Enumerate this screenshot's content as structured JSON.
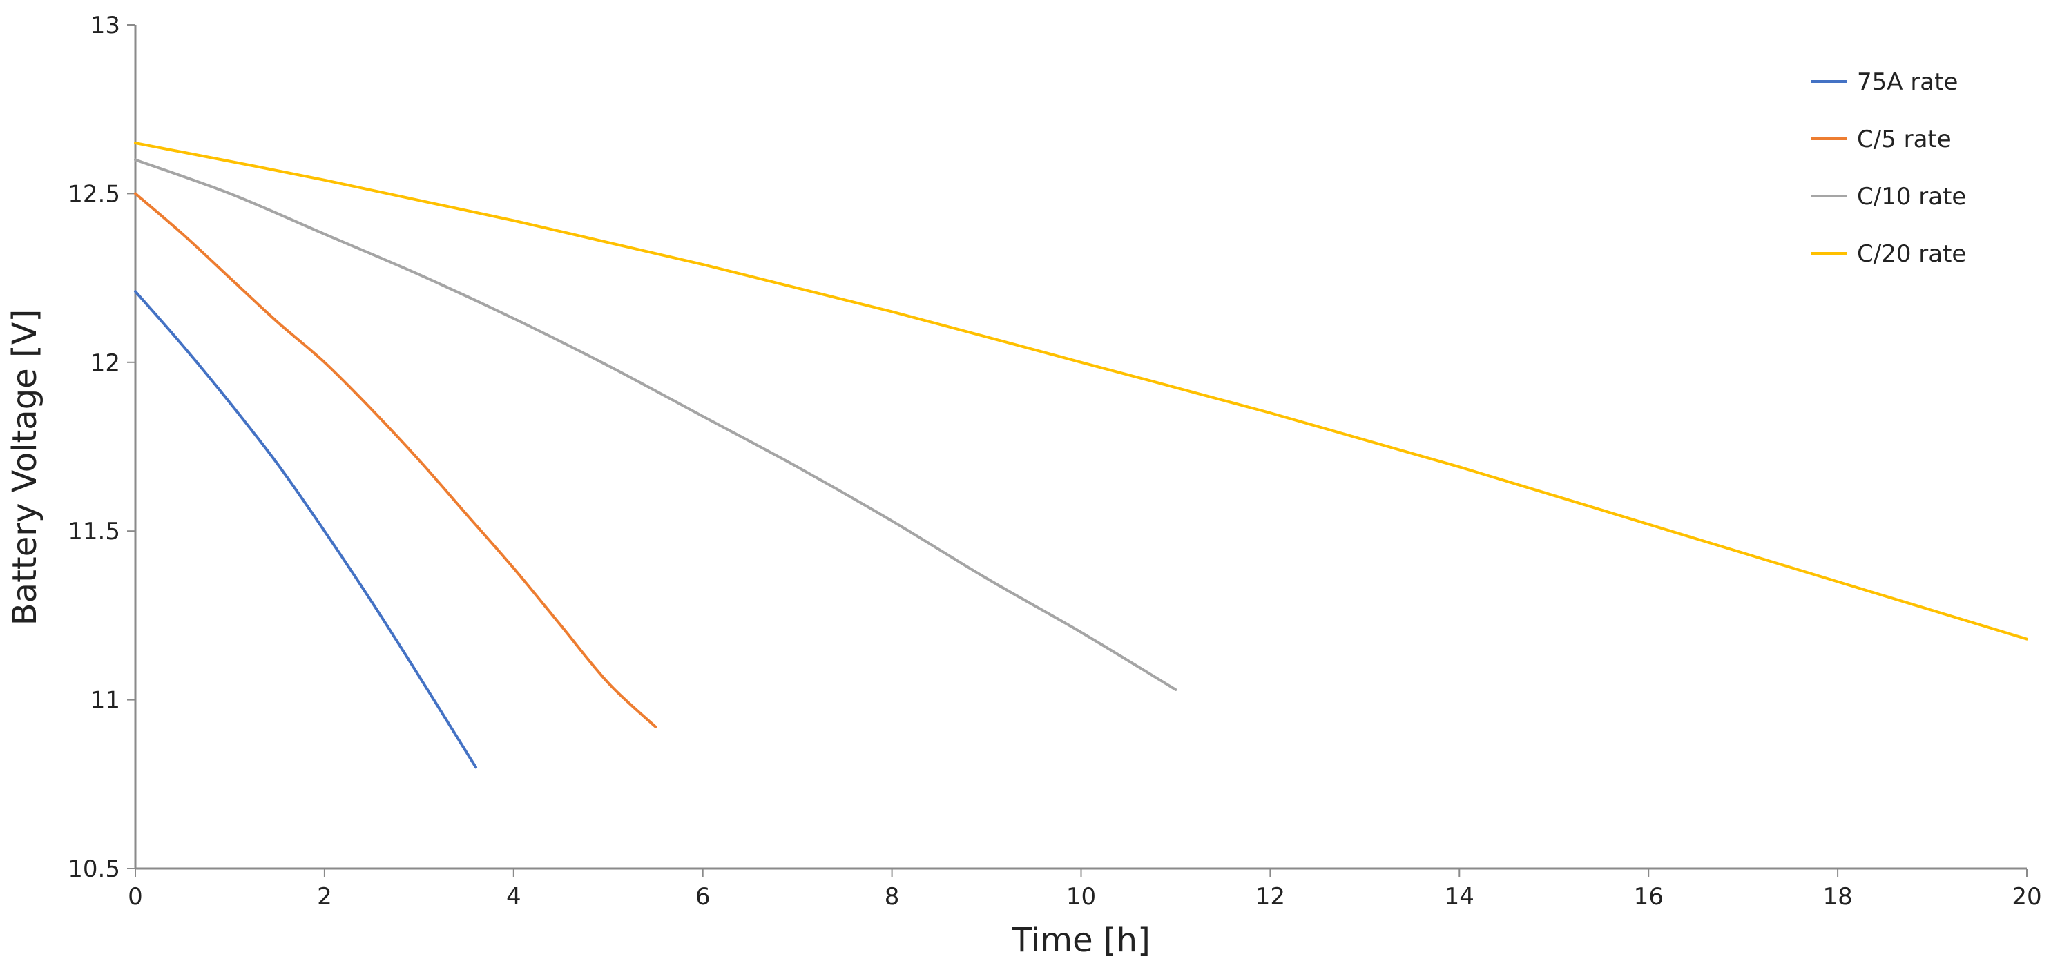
{
  "chart_data": {
    "type": "line",
    "title": "",
    "xlabel": "Time [h]",
    "ylabel": "Battery Voltage [V]",
    "xlim": [
      0,
      20
    ],
    "ylim": [
      10.5,
      13
    ],
    "x_ticks": [
      0,
      2,
      4,
      6,
      8,
      10,
      12,
      14,
      16,
      18,
      20
    ],
    "y_ticks": [
      10.5,
      11,
      11.5,
      12,
      12.5,
      13
    ],
    "x_tick_labels": [
      "0",
      "2",
      "4",
      "6",
      "8",
      "10",
      "12",
      "14",
      "16",
      "18",
      "20"
    ],
    "y_tick_labels": [
      "10.5",
      "11",
      "11.5",
      "12",
      "12.5",
      "13"
    ],
    "grid": false,
    "legend_position": "top-right",
    "series": [
      {
        "name": "75A rate",
        "color": "#4472C4",
        "x": [
          0,
          0.5,
          1,
          1.5,
          2,
          2.5,
          3,
          3.6
        ],
        "y": [
          12.21,
          12.05,
          11.88,
          11.7,
          11.5,
          11.29,
          11.07,
          10.8
        ]
      },
      {
        "name": "C/5 rate",
        "color": "#ED7D31",
        "x": [
          0,
          0.5,
          1,
          1.5,
          2,
          2.5,
          3,
          3.5,
          4,
          4.5,
          5,
          5.5
        ],
        "y": [
          12.5,
          12.38,
          12.25,
          12.12,
          12.0,
          11.86,
          11.71,
          11.55,
          11.39,
          11.22,
          11.05,
          10.92
        ]
      },
      {
        "name": "C/10 rate",
        "color": "#A5A5A5",
        "x": [
          0,
          1,
          2,
          3,
          4,
          5,
          6,
          7,
          8,
          9,
          10,
          11
        ],
        "y": [
          12.6,
          12.5,
          12.38,
          12.26,
          12.13,
          11.99,
          11.84,
          11.69,
          11.53,
          11.36,
          11.2,
          11.03
        ]
      },
      {
        "name": "C/20 rate",
        "color": "#FFC000",
        "x": [
          0,
          2,
          4,
          6,
          8,
          10,
          12,
          14,
          16,
          18,
          20
        ],
        "y": [
          12.65,
          12.54,
          12.42,
          12.29,
          12.15,
          12.0,
          11.85,
          11.69,
          11.52,
          11.35,
          11.18
        ]
      }
    ]
  }
}
